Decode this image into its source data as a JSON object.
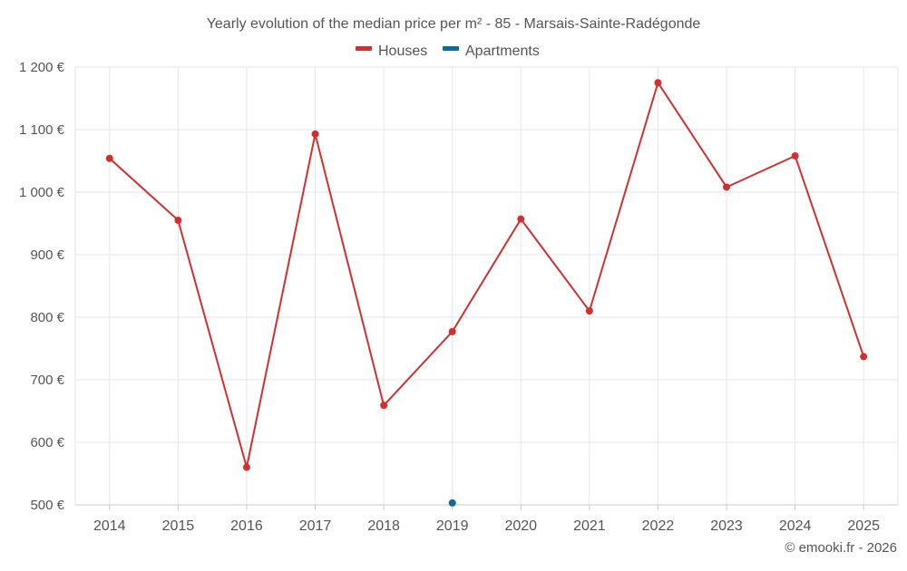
{
  "chart_data": {
    "type": "line",
    "title": "Yearly evolution of the median price per m² - 85 - Marsais-Sainte-Radégonde",
    "categories": [
      "2014",
      "2015",
      "2016",
      "2017",
      "2018",
      "2019",
      "2020",
      "2021",
      "2022",
      "2023",
      "2024",
      "2025"
    ],
    "series": [
      {
        "name": "Houses",
        "color": "#d32f2f",
        "values": [
          1054,
          955,
          560,
          1093,
          659,
          777,
          957,
          810,
          1175,
          1008,
          1058,
          737
        ]
      },
      {
        "name": "Apartments",
        "color": "#0d6a9c",
        "values": [
          null,
          null,
          null,
          null,
          null,
          503,
          null,
          null,
          null,
          null,
          null,
          null
        ]
      }
    ],
    "ylim": [
      500,
      1200
    ],
    "yticks": [
      500,
      600,
      700,
      800,
      900,
      1000,
      1100,
      1200
    ],
    "ytick_labels": [
      "500 €",
      "600 €",
      "700 €",
      "800 €",
      "900 €",
      "1 000 €",
      "1 100 €",
      "1 200 €"
    ],
    "grid": true,
    "legend_position": "top-center"
  },
  "credit": "© emooki.fr - 2026"
}
